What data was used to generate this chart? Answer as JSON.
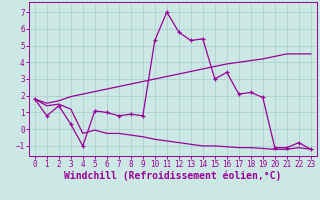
{
  "xlabel": "Windchill (Refroidissement éolien,°C)",
  "bg_color": "#cce8e4",
  "line_color": "#990099",
  "grid_color": "#aacccc",
  "xlim": [
    -0.5,
    23.5
  ],
  "ylim": [
    -1.6,
    7.6
  ],
  "xticks": [
    0,
    1,
    2,
    3,
    4,
    5,
    6,
    7,
    8,
    9,
    10,
    11,
    12,
    13,
    14,
    15,
    16,
    17,
    18,
    19,
    20,
    21,
    22,
    23
  ],
  "yticks": [
    -1,
    0,
    1,
    2,
    3,
    4,
    5,
    6,
    7
  ],
  "line1_x": [
    0,
    1,
    2,
    3,
    4,
    5,
    6,
    7,
    8,
    9,
    10,
    11,
    12,
    13,
    14,
    15,
    16,
    17,
    18,
    19,
    20,
    21,
    22,
    23
  ],
  "line1_y": [
    1.8,
    0.8,
    1.4,
    0.3,
    -1.0,
    1.1,
    1.0,
    0.8,
    0.9,
    0.8,
    5.3,
    7.0,
    5.8,
    5.3,
    5.4,
    3.0,
    3.4,
    2.1,
    2.2,
    1.9,
    -1.1,
    -1.1,
    -0.8,
    -1.2
  ],
  "line2_x": [
    0,
    1,
    2,
    3,
    4,
    5,
    6,
    7,
    8,
    9,
    10,
    11,
    12,
    13,
    14,
    15,
    16,
    17,
    18,
    19,
    20,
    21,
    22,
    23
  ],
  "line2_y": [
    1.8,
    1.55,
    1.7,
    1.95,
    2.1,
    2.25,
    2.4,
    2.55,
    2.7,
    2.85,
    3.0,
    3.15,
    3.3,
    3.45,
    3.6,
    3.75,
    3.9,
    4.0,
    4.1,
    4.2,
    4.35,
    4.5,
    4.5,
    4.5
  ],
  "line3_x": [
    0,
    1,
    2,
    3,
    4,
    5,
    6,
    7,
    8,
    9,
    10,
    11,
    12,
    13,
    14,
    15,
    16,
    17,
    18,
    19,
    20,
    21,
    22,
    23
  ],
  "line3_y": [
    1.8,
    1.4,
    1.5,
    1.2,
    -0.25,
    -0.05,
    -0.25,
    -0.25,
    -0.35,
    -0.45,
    -0.6,
    -0.7,
    -0.8,
    -0.9,
    -1.0,
    -1.0,
    -1.05,
    -1.1,
    -1.1,
    -1.15,
    -1.2,
    -1.2,
    -1.1,
    -1.2
  ],
  "tick_fontsize": 5.5,
  "label_fontsize": 7.0
}
